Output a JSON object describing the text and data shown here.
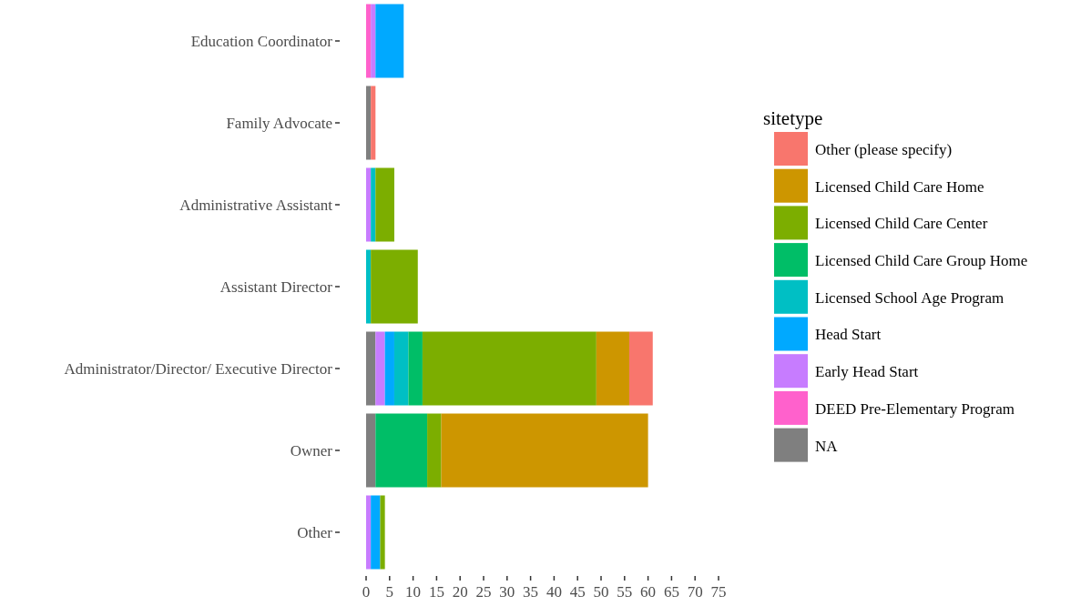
{
  "chart_data": {
    "type": "bar",
    "orientation": "horizontal",
    "stacked": true,
    "legend": "right",
    "legend_title": "sitetype",
    "grid": false,
    "categories": [
      "Education Coordinator",
      "Family Advocate",
      "Administrative Assistant",
      "Assistant Director",
      "Administrator/Director/ Executive Director",
      "Owner",
      "Other"
    ],
    "xlim": [
      0,
      75
    ],
    "xticks": [
      0,
      5,
      10,
      15,
      20,
      25,
      30,
      35,
      40,
      45,
      50,
      55,
      60,
      65,
      70,
      75
    ],
    "series": [
      {
        "name": "NA",
        "color": "#7f7f7f",
        "values": [
          null,
          1,
          null,
          null,
          2,
          2,
          null
        ]
      },
      {
        "name": "DEED Pre-Elementary Program",
        "color": "#ff61cc",
        "values": [
          1,
          null,
          null,
          null,
          null,
          null,
          null
        ]
      },
      {
        "name": "Early Head Start",
        "color": "#c77cff",
        "values": [
          1,
          null,
          1,
          null,
          2,
          null,
          1
        ]
      },
      {
        "name": "Head Start",
        "color": "#00a9ff",
        "values": [
          6,
          null,
          null,
          null,
          2,
          null,
          2
        ]
      },
      {
        "name": "Licensed School Age Program",
        "color": "#00bfc4",
        "values": [
          null,
          null,
          1,
          1,
          3,
          null,
          null
        ]
      },
      {
        "name": "Licensed Child Care Group Home",
        "color": "#00be67",
        "values": [
          null,
          null,
          null,
          null,
          3,
          11,
          null
        ]
      },
      {
        "name": "Licensed Child Care Center",
        "color": "#7cae00",
        "values": [
          null,
          null,
          4,
          10,
          37,
          3,
          1
        ]
      },
      {
        "name": "Licensed Child Care Home",
        "color": "#cd9600",
        "values": [
          null,
          null,
          null,
          null,
          7,
          44,
          null
        ]
      },
      {
        "name": "Other (please specify)",
        "color": "#f8766d",
        "values": [
          null,
          1,
          null,
          null,
          5,
          null,
          null
        ]
      }
    ]
  }
}
